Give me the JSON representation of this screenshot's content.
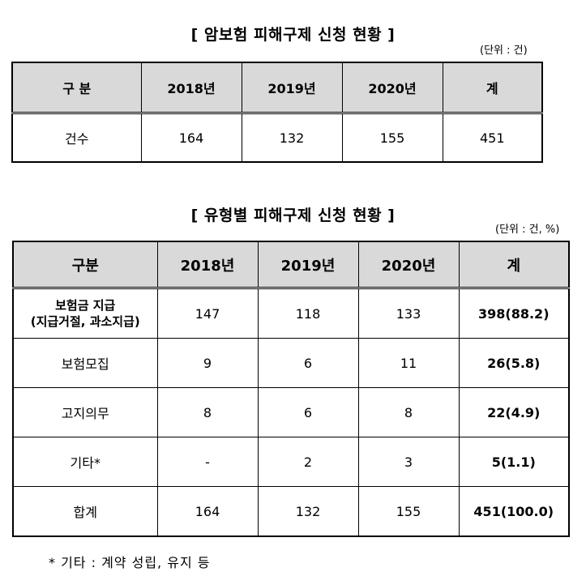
{
  "table1": {
    "title": "[ 암보험 피해구제 신청 현황 ]",
    "unit": "(단위 : 건)",
    "headers": [
      "구 분",
      "2018년",
      "2019년",
      "2020년",
      "계"
    ],
    "rows": [
      {
        "label": "건수",
        "values": [
          "164",
          "132",
          "155",
          "451"
        ]
      }
    ]
  },
  "table2": {
    "title": "[ 유형별 피해구제 신청 현황 ]",
    "unit": "(단위 : 건, %)",
    "headers": [
      "구분",
      "2018년",
      "2019년",
      "2020년",
      "계"
    ],
    "rows": [
      {
        "label": "보험금 지급",
        "sublabel": "(지급거절, 과소지급)",
        "values": [
          "147",
          "118",
          "133"
        ],
        "total": "398(88.2)"
      },
      {
        "label": "보험모집",
        "values": [
          "9",
          "6",
          "11"
        ],
        "total": "26(5.8)"
      },
      {
        "label": "고지의무",
        "values": [
          "8",
          "6",
          "8"
        ],
        "total": "22(4.9)"
      },
      {
        "label": "기타*",
        "values": [
          "-",
          "2",
          "3"
        ],
        "total": "5(1.1)"
      },
      {
        "label": "합계",
        "values": [
          "164",
          "132",
          "155"
        ],
        "total": "451(100.0)"
      }
    ]
  },
  "footnote": "* 기타 : 계약 성립, 유지 등"
}
